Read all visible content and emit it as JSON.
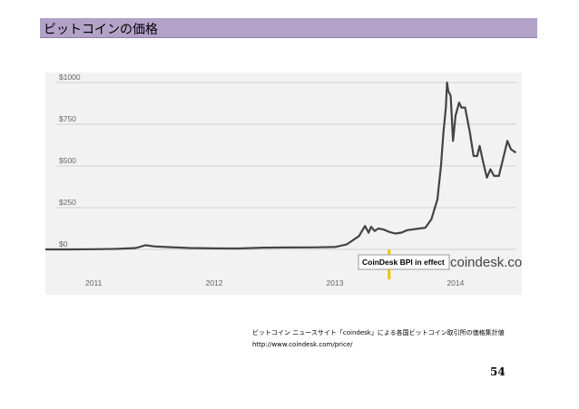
{
  "slide": {
    "title": "ビットコインの価格",
    "caption_line1": "ビットコイン ニュースサイト「coindesk」による各国ビットコイン取引所の価格集計値",
    "caption_line2": "http://www.coindesk.com/price/",
    "page_number": "54"
  },
  "colors": {
    "title_bar": "#b3a2c7",
    "chart_bg": "#f2f2f2",
    "line": "#444444",
    "highlight": "#f2c200",
    "watermark": "#444444"
  },
  "chart_data": {
    "type": "line",
    "title": "",
    "xlabel": "",
    "ylabel": "",
    "y_tick_labels": [
      "$1000",
      "$750",
      "$500",
      "$250",
      "$0"
    ],
    "y_ticks": [
      1000,
      750,
      500,
      250,
      0
    ],
    "x_tick_labels": [
      "2011",
      "2012",
      "2013",
      "2014"
    ],
    "x_ticks": [
      2011.0,
      2012.0,
      2013.0,
      2014.0
    ],
    "xlim": [
      2010.6,
      2014.55
    ],
    "ylim": [
      -60,
      1060
    ],
    "grid": true,
    "legend": "none",
    "annotation_label": "CoinDesk BPI in effect",
    "annotation_x": 2013.45,
    "watermark": "coindesk.com",
    "series": [
      {
        "x": [
          2010.6,
          2010.8,
          2011.0,
          2011.2,
          2011.35,
          2011.43,
          2011.5,
          2011.6,
          2011.8,
          2012.0,
          2012.2,
          2012.4,
          2012.6,
          2012.8,
          2013.0,
          2013.1,
          2013.2,
          2013.25,
          2013.28,
          2013.3,
          2013.33,
          2013.36,
          2013.4,
          2013.45,
          2013.5,
          2013.55,
          2013.6,
          2013.65,
          2013.7,
          2013.75,
          2013.8,
          2013.85,
          2013.88,
          2013.9,
          2013.92,
          2013.93,
          2013.94,
          2013.96,
          2013.98,
          2014.0,
          2014.03,
          2014.05,
          2014.08,
          2014.12,
          2014.15,
          2014.18,
          2014.2,
          2014.23,
          2014.26,
          2014.29,
          2014.32,
          2014.36,
          2014.4,
          2014.43,
          2014.46,
          2014.5
        ],
        "y": [
          0,
          0,
          1,
          3,
          8,
          25,
          18,
          14,
          8,
          6,
          5,
          10,
          11,
          12,
          14,
          30,
          80,
          140,
          100,
          135,
          110,
          125,
          120,
          105,
          95,
          100,
          115,
          120,
          125,
          130,
          180,
          300,
          500,
          700,
          850,
          1000,
          950,
          920,
          650,
          800,
          880,
          850,
          850,
          700,
          560,
          560,
          620,
          520,
          430,
          480,
          440,
          440,
          560,
          650,
          600,
          580
        ]
      }
    ]
  }
}
